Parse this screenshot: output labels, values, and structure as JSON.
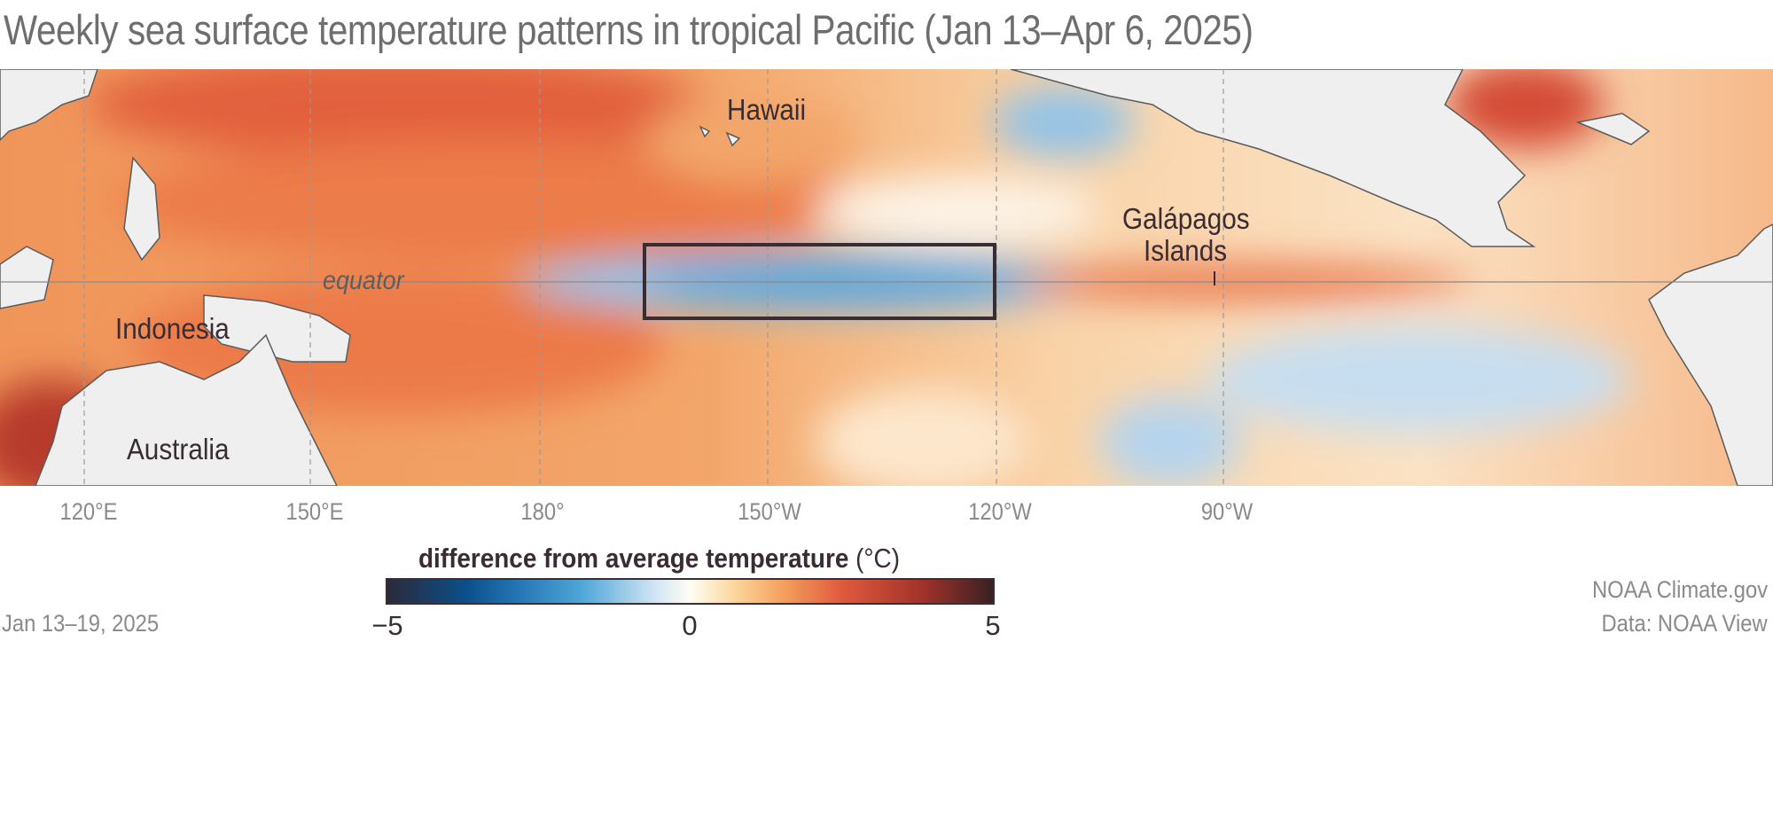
{
  "title": "Weekly sea surface temperature patterns in tropical Pacific (Jan 13–Apr 6, 2025)",
  "map": {
    "labels": {
      "hawaii": "Hawaii",
      "indonesia": "Indonesia",
      "australia": "Australia",
      "galapagos_line1": "Galápagos",
      "galapagos_line2": "Islands",
      "equator": "equator"
    },
    "longitude_ticks": [
      "120°E",
      "150°E",
      "180°",
      "150°W",
      "120°W",
      "90°W"
    ],
    "highlight_box": "Niño 3.4 region outline (170°W–120°W)"
  },
  "legend": {
    "title": "difference from average temperature",
    "unit": "(°C)",
    "min_label": "−5",
    "mid_label": "0",
    "max_label": "5",
    "range": [
      -5,
      5
    ],
    "colors": [
      "#2b2a3a",
      "#0b4f8a",
      "#4ea6d8",
      "#fffdf3",
      "#f5a25f",
      "#e05a3d",
      "#3a2024"
    ]
  },
  "footer": {
    "date": "Jan 13–19, 2025",
    "credit": "NOAA Climate.gov",
    "source": "Data: NOAA View"
  }
}
